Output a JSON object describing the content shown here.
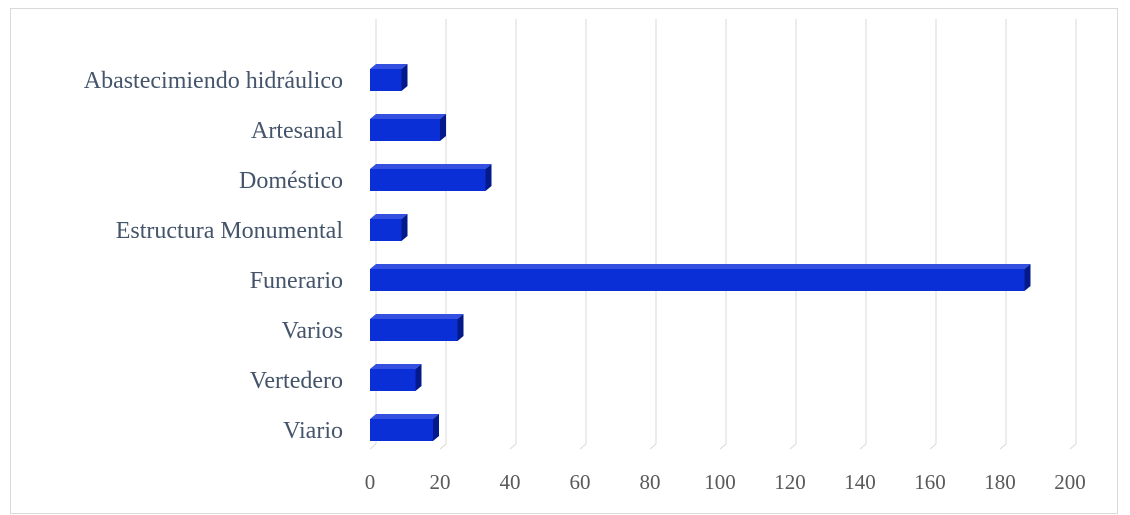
{
  "chart_data": {
    "type": "bar",
    "orientation": "horizontal",
    "style": "3d",
    "categories": [
      "Abastecimiendo hidráulico",
      "Artesanal",
      "Doméstico",
      "Estructura Monumental",
      "Funerario",
      "Varios",
      "Vertedero",
      "Viario"
    ],
    "values": [
      9,
      20,
      33,
      9,
      187,
      25,
      13,
      18
    ],
    "xlim": [
      0,
      200
    ],
    "xticks": [
      0,
      20,
      40,
      60,
      80,
      100,
      120,
      140,
      160,
      180,
      200
    ],
    "grid": true,
    "legend": "none",
    "colors": {
      "bar_front": "#0a2fd6",
      "bar_top": "#3350e0",
      "bar_side": "#051a8a",
      "gridline": "#d9d9d9"
    }
  }
}
